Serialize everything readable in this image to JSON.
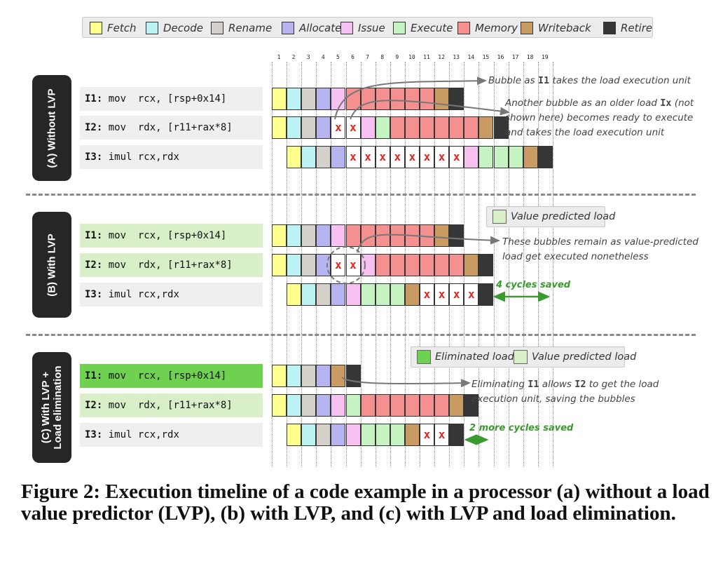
{
  "legend": [
    {
      "key": "fetch",
      "label": "Fetch",
      "color": "#ffff8f"
    },
    {
      "key": "decode",
      "label": "Decode",
      "color": "#bdf2f4"
    },
    {
      "key": "rename",
      "label": "Rename",
      "color": "#d4d0ca"
    },
    {
      "key": "allocate",
      "label": "Allocate",
      "color": "#b6b4ee"
    },
    {
      "key": "issue",
      "label": "Issue",
      "color": "#f7c2f2"
    },
    {
      "key": "execute",
      "label": "Execute",
      "color": "#c5f3c1"
    },
    {
      "key": "memory",
      "label": "Memory",
      "color": "#f59090"
    },
    {
      "key": "writeback",
      "label": "Writeback",
      "color": "#c99a62"
    },
    {
      "key": "retire",
      "label": "Retire",
      "color": "#363636"
    }
  ],
  "extra_colors": {
    "eliminated": "#6fd150",
    "value_predicted": "#d8efc8",
    "instr_bg": "#efefef",
    "instr_bg_vp": "#d8efc8",
    "instr_bg_elim": "#6fd150"
  },
  "cycle_ticks": [
    "1",
    "2",
    "3",
    "4",
    "5",
    "6",
    "7",
    "8",
    "9",
    "10",
    "11",
    "12",
    "13",
    "14",
    "15",
    "16",
    "17",
    "18",
    "19"
  ],
  "stall_mark": "x",
  "sections": [
    {
      "label_lines": [
        "(A) Without LVP"
      ],
      "instructions": [
        {
          "id": "I1:",
          "text": "mov  rcx, [rsp+0x14]",
          "bg": "instr_bg",
          "cells": [
            "fetch",
            "decode",
            "rename",
            "allocate",
            "issue",
            "memory",
            "memory",
            "memory",
            "memory",
            "memory",
            "memory",
            "writeback",
            "retire"
          ],
          "start": 1
        },
        {
          "id": "I2:",
          "text": "mov  rdx, [r11+rax*8]",
          "bg": "instr_bg",
          "cells": [
            "fetch",
            "decode",
            "rename",
            "allocate",
            "x",
            "x",
            "issue",
            "execute",
            "memory",
            "memory",
            "memory",
            "memory",
            "memory",
            "memory",
            "writeback",
            "retire"
          ],
          "start": 1
        },
        {
          "id": "I3:",
          "text": "imul rcx,rdx",
          "bg": "instr_bg",
          "cells": [
            "fetch",
            "decode",
            "rename",
            "allocate",
            "x",
            "x",
            "x",
            "x",
            "x",
            "x",
            "x",
            "x",
            "issue",
            "execute",
            "execute",
            "execute",
            "writeback",
            "retire"
          ],
          "start": 2
        }
      ],
      "notes": [
        {
          "html_parts": [
            "Bubble as ",
            "I1",
            " takes the load execution unit"
          ]
        },
        {
          "lines": [
            [
              "Another bubble as an older load ",
              "Ix",
              " (not"
            ],
            [
              "shown here) becomes ready to execute"
            ],
            [
              "and takes the load execution unit"
            ]
          ]
        }
      ]
    },
    {
      "label_lines": [
        "(B) With LVP"
      ],
      "legend_box": [
        {
          "label": "Value predicted load",
          "color": "value_predicted"
        }
      ],
      "instructions": [
        {
          "id": "I1:",
          "text": "mov  rcx, [rsp+0x14]",
          "bg": "instr_bg_vp",
          "cells": [
            "fetch",
            "decode",
            "rename",
            "allocate",
            "issue",
            "memory",
            "memory",
            "memory",
            "memory",
            "memory",
            "memory",
            "writeback",
            "retire"
          ],
          "start": 1
        },
        {
          "id": "I2:",
          "text": "mov  rdx, [r11+rax*8]",
          "bg": "instr_bg_vp",
          "cells": [
            "fetch",
            "decode",
            "rename",
            "allocate",
            "x",
            "x",
            "issue",
            "memory",
            "memory",
            "memory",
            "memory",
            "memory",
            "memory",
            "writeback",
            "retire"
          ],
          "start": 1
        },
        {
          "id": "I3:",
          "text": "imul rcx,rdx",
          "bg": "instr_bg",
          "cells": [
            "fetch",
            "decode",
            "rename",
            "allocate",
            "issue",
            "execute",
            "execute",
            "execute",
            "writeback",
            "x",
            "x",
            "x",
            "x",
            "retire"
          ],
          "start": 2
        }
      ],
      "notes": [
        {
          "lines": [
            [
              "These bubbles remain as value-predicted"
            ],
            [
              "load get executed nonetheless"
            ]
          ]
        }
      ],
      "saved": "4 cycles saved"
    },
    {
      "label_lines": [
        "(C) With LVP +",
        "Load elimination"
      ],
      "legend_box": [
        {
          "label": "Eliminated load",
          "color": "eliminated"
        },
        {
          "label": "Value predicted load",
          "color": "value_predicted"
        }
      ],
      "instructions": [
        {
          "id": "I1:",
          "text": "mov  rcx, [rsp+0x14]",
          "bg": "instr_bg_elim",
          "cells": [
            "fetch",
            "decode",
            "rename",
            "allocate",
            "writeback",
            "retire"
          ],
          "start": 1
        },
        {
          "id": "I2:",
          "text": "mov  rdx, [r11+rax*8]",
          "bg": "instr_bg_vp",
          "cells": [
            "fetch",
            "decode",
            "rename",
            "allocate",
            "issue",
            "execute",
            "memory",
            "memory",
            "memory",
            "memory",
            "memory",
            "memory",
            "writeback",
            "retire"
          ],
          "start": 1
        },
        {
          "id": "I3:",
          "text": "imul rcx,rdx",
          "bg": "instr_bg",
          "cells": [
            "fetch",
            "decode",
            "rename",
            "allocate",
            "issue",
            "execute",
            "execute",
            "execute",
            "writeback",
            "x",
            "x",
            "retire"
          ],
          "start": 2
        }
      ],
      "notes": [
        {
          "lines": [
            [
              "Eliminating ",
              "I1",
              " allows ",
              "I2",
              " to get the load"
            ],
            [
              "execution unit, saving the bubbles"
            ]
          ]
        }
      ],
      "saved": "2 more cycles saved"
    }
  ],
  "caption": "Figure 2: Execution timeline of a code example in a processor (a) without a load value predictor (LVP), (b) with LVP, and (c) with LVP and load elimination."
}
